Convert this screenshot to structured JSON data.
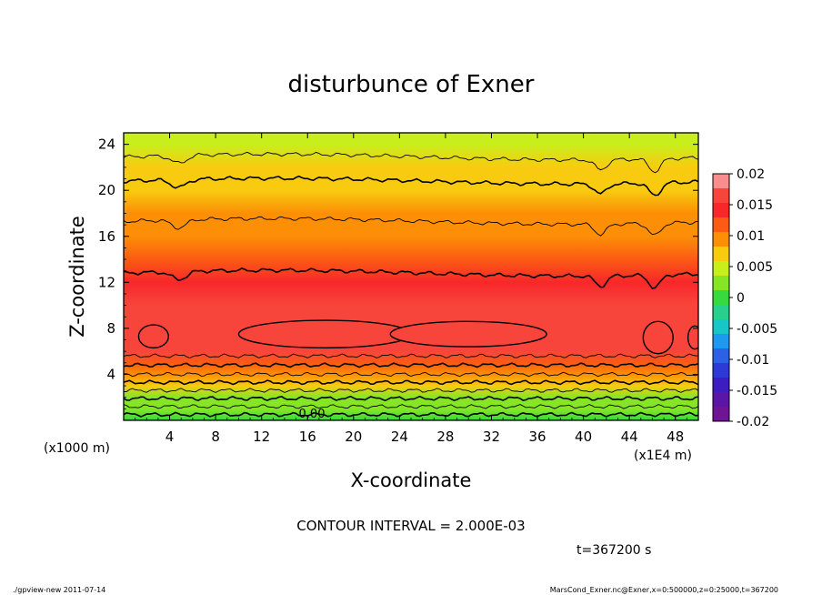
{
  "chart_data": {
    "type": "heatmap",
    "title": "disturbunce of Exner",
    "xlabel": "X-coordinate",
    "ylabel": "Z-coordinate",
    "x_unit_left": "(x1000 m)",
    "x_unit_right": "(x1E4 m)",
    "xlim": [
      0,
      50
    ],
    "ylim": [
      0,
      25
    ],
    "x_ticks": [
      4,
      8,
      12,
      16,
      20,
      24,
      28,
      32,
      36,
      40,
      44,
      48
    ],
    "x_tick_labels": [
      "4",
      "8",
      "12",
      "16",
      "20",
      "24",
      "28",
      "32",
      "36",
      "40",
      "44",
      "48"
    ],
    "y_ticks": [
      4,
      8,
      12,
      16,
      20,
      24
    ],
    "y_tick_labels": [
      "4",
      "8",
      "12",
      "16",
      "20",
      "24"
    ],
    "colorbar": {
      "min": -0.02,
      "max": 0.02,
      "tick_values": [
        0.02,
        0.015,
        0.01,
        0.005,
        0,
        -0.005,
        -0.01,
        -0.015,
        -0.02
      ],
      "tick_labels": [
        "0.02",
        "0.015",
        "0.01",
        "0.005",
        "0",
        "-0.005",
        "-0.01",
        "-0.015",
        "-0.02"
      ],
      "colors": [
        "#f78d8d",
        "#f8453c",
        "#f8272a",
        "#fb5b13",
        "#fc8f06",
        "#f9cb10",
        "#c8ee1c",
        "#86e625",
        "#38d93d",
        "#28d08c",
        "#16c7c6",
        "#1e99f0",
        "#2c61e3",
        "#2d3ad6",
        "#3d1cc2",
        "#5b16a5",
        "#6e1495"
      ]
    },
    "contour_label": "0.00",
    "vertical_profile": [
      {
        "z": 0,
        "value": 0.0
      },
      {
        "z": 1,
        "value": 0.0015
      },
      {
        "z": 2,
        "value": 0.0035
      },
      {
        "z": 3,
        "value": 0.006
      },
      {
        "z": 4,
        "value": 0.009
      },
      {
        "z": 5,
        "value": 0.0125
      },
      {
        "z": 6,
        "value": 0.0155
      },
      {
        "z": 7,
        "value": 0.017
      },
      {
        "z": 8,
        "value": 0.0175
      },
      {
        "z": 10,
        "value": 0.016
      },
      {
        "z": 12,
        "value": 0.014
      },
      {
        "z": 14,
        "value": 0.012
      },
      {
        "z": 16,
        "value": 0.0105
      },
      {
        "z": 18,
        "value": 0.009
      },
      {
        "z": 20,
        "value": 0.0075
      },
      {
        "z": 22,
        "value": 0.0065
      },
      {
        "z": 24,
        "value": 0.0055
      },
      {
        "z": 25,
        "value": 0.005
      }
    ],
    "contour_lines_z": [
      0.5,
      1.2,
      1.9,
      2.6,
      3.3,
      4.0,
      4.8,
      5.6,
      12.8,
      17.3,
      20.8,
      22.9
    ]
  },
  "annotations": {
    "contour_interval": "CONTOUR INTERVAL = 2.000E-03",
    "time": "t=367200 s",
    "footer_left": "./gpview-new   2011-07-14",
    "footer_right": "MarsCond_Exner.nc@Exner,x=0:500000,z=0:25000,t=367200"
  }
}
